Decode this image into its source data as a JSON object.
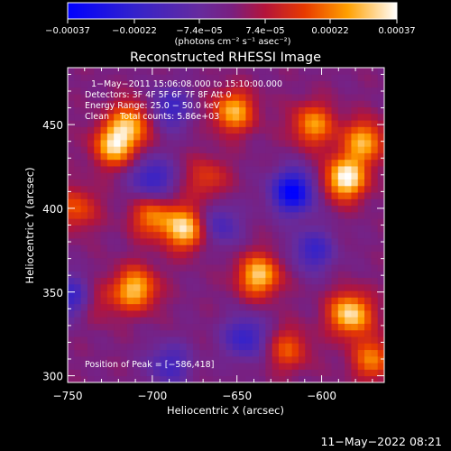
{
  "chart_data": {
    "type": "heatmap",
    "title": "Reconstructed RHESSI Image",
    "xlabel": "Heliocentric X (arcsec)",
    "ylabel": "Heliocentric Y (arcsec)",
    "xlim": [
      -750,
      -563
    ],
    "ylim": [
      296,
      484
    ],
    "xticks": [
      -750,
      -700,
      -650,
      -600
    ],
    "xtick_labels": [
      "−750",
      "−700",
      "−650",
      "−600"
    ],
    "yticks": [
      300,
      350,
      400,
      450
    ],
    "ytick_labels": [
      "300",
      "350",
      "400",
      "450"
    ],
    "colorbar": {
      "ticks": [
        -0.00037,
        -0.00022,
        -7.4e-05,
        7.4e-05,
        0.00022,
        0.00037
      ],
      "tick_labels": [
        "−0.00037",
        "−0.00022",
        "−7.4e−05",
        "7.4e−05",
        "0.00022",
        "0.00037"
      ],
      "unit_label": "(photons cm⁻² s⁻¹ asec⁻²)",
      "range": [
        -0.00037,
        0.00037
      ]
    },
    "annotations": [
      "1−May−2011 15:06:08.000 to 15:10:00.000",
      "Detectors: 3F 4F 5F 6F 7F 8F Att 0",
      "Energy Range: 25.0 − 50.0 keV",
      "Clean    Total counts: 5.86e+03"
    ],
    "peak_annotation": "Position of Peak = [−586,418]",
    "peak_position": [
      -586,
      418
    ],
    "hot_regions": [
      {
        "x": -722,
        "y": 438,
        "value": 0.00032
      },
      {
        "x": -712,
        "y": 452,
        "value": 0.00024
      },
      {
        "x": -652,
        "y": 458,
        "value": 0.00028
      },
      {
        "x": -605,
        "y": 450,
        "value": 0.00025
      },
      {
        "x": -586,
        "y": 418,
        "value": 0.00037
      },
      {
        "x": -575,
        "y": 440,
        "value": 0.00027
      },
      {
        "x": -680,
        "y": 388,
        "value": 0.00033
      },
      {
        "x": -700,
        "y": 395,
        "value": 0.00022
      },
      {
        "x": -745,
        "y": 400,
        "value": 0.00018
      },
      {
        "x": -710,
        "y": 352,
        "value": 0.0003
      },
      {
        "x": -637,
        "y": 360,
        "value": 0.00031
      },
      {
        "x": -583,
        "y": 337,
        "value": 0.00034
      },
      {
        "x": -570,
        "y": 310,
        "value": 0.00022
      },
      {
        "x": -620,
        "y": 316,
        "value": 0.00018
      },
      {
        "x": -735,
        "y": 345,
        "value": 0.00016
      },
      {
        "x": -668,
        "y": 418,
        "value": 0.00015
      }
    ],
    "cold_regions": [
      {
        "x": -617,
        "y": 410,
        "value": -0.00037
      },
      {
        "x": -745,
        "y": 347,
        "value": -0.00026
      },
      {
        "x": -700,
        "y": 418,
        "value": -0.00022
      },
      {
        "x": -690,
        "y": 460,
        "value": -0.0002
      },
      {
        "x": -645,
        "y": 323,
        "value": -0.00022
      },
      {
        "x": -661,
        "y": 390,
        "value": -0.00018
      },
      {
        "x": -605,
        "y": 375,
        "value": -0.0002
      },
      {
        "x": -690,
        "y": 307,
        "value": -0.00018
      }
    ]
  },
  "footer": {
    "timestamp": "11−May−2022 08:21"
  }
}
